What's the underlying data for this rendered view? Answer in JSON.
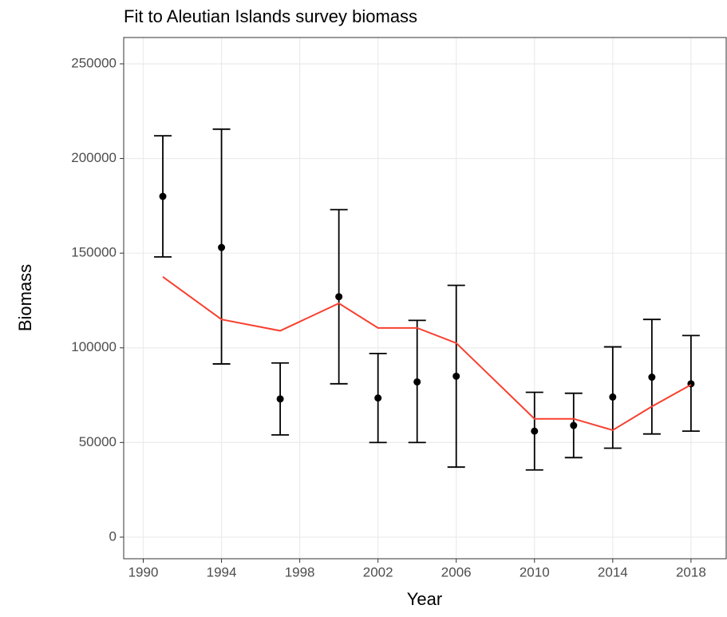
{
  "chart_data": {
    "type": "line",
    "title": "Fit to Aleutian Islands survey biomass",
    "x_label": "Year",
    "y_label": "Biomass",
    "x": [
      1991,
      1994,
      1997,
      2000,
      2002,
      2004,
      2006,
      2010,
      2012,
      2014,
      2016,
      2018
    ],
    "series": [
      {
        "style": "points",
        "color": "#000000",
        "values": [
          180000,
          153000,
          73000,
          127000,
          73500,
          82000,
          85000,
          56000,
          59000,
          74000,
          84500,
          81000
        ],
        "lower": [
          148000,
          91500,
          54000,
          81000,
          50000,
          50000,
          37000,
          35500,
          42000,
          47000,
          54500,
          56000
        ],
        "upper": [
          212000,
          215500,
          92000,
          173000,
          97000,
          114500,
          133000,
          76500,
          76000,
          100500,
          115000,
          106500
        ]
      },
      {
        "style": "line",
        "color": "#f8402f",
        "values": [
          137500,
          115000,
          109000,
          123500,
          110500,
          110500,
          102500,
          62500,
          62500,
          56500,
          69000,
          80500
        ]
      }
    ],
    "xlim": [
      1989,
      2019.8
    ],
    "xticks": [
      1990,
      1994,
      1998,
      2002,
      2006,
      2010,
      2014,
      2018
    ],
    "ylim": [
      -11400,
      263900
    ],
    "yticks": [
      0,
      50000,
      100000,
      150000,
      200000,
      250000
    ],
    "grid": true
  }
}
